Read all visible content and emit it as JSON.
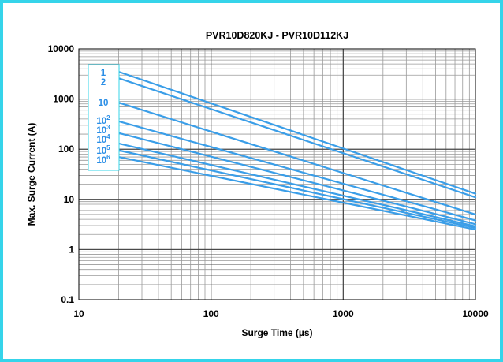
{
  "chart_data": {
    "type": "line",
    "title": "PVR10D820KJ - PVR10D112KJ",
    "xlabel": "Surge Time (µs)",
    "ylabel": "Max. Surge Current (A)",
    "x_scale": "log",
    "y_scale": "log",
    "xlim": [
      10,
      10000
    ],
    "ylim": [
      0.1,
      10000
    ],
    "x_ticks": [
      "10",
      "100",
      "1000",
      "10000"
    ],
    "y_ticks": [
      "0.1",
      "1",
      "10",
      "100",
      "1000",
      "10000"
    ],
    "grid": true,
    "legend_position": "top-left",
    "line_color": "#3a9ee8",
    "series": [
      {
        "name": "1",
        "label_base": "1",
        "label_exp": "",
        "x": [
          20,
          10000
        ],
        "y": [
          3500,
          13
        ]
      },
      {
        "name": "2",
        "label_base": "2",
        "label_exp": "",
        "x": [
          20,
          10000
        ],
        "y": [
          2600,
          11
        ]
      },
      {
        "name": "10",
        "label_base": "10",
        "label_exp": "",
        "x": [
          20,
          10000
        ],
        "y": [
          850,
          5
        ]
      },
      {
        "name": "10^2",
        "label_base": "10",
        "label_exp": "2",
        "x": [
          20,
          10000
        ],
        "y": [
          360,
          3.8
        ]
      },
      {
        "name": "10^3",
        "label_base": "10",
        "label_exp": "3",
        "x": [
          20,
          10000
        ],
        "y": [
          210,
          3.2
        ]
      },
      {
        "name": "10^4",
        "label_base": "10",
        "label_exp": "4",
        "x": [
          20,
          10000
        ],
        "y": [
          130,
          2.9
        ]
      },
      {
        "name": "10^5",
        "label_base": "10",
        "label_exp": "5",
        "x": [
          20,
          10000
        ],
        "y": [
          95,
          2.7
        ]
      },
      {
        "name": "10^6",
        "label_base": "10",
        "label_exp": "6",
        "x": [
          20,
          10000
        ],
        "y": [
          70,
          2.5
        ]
      }
    ]
  }
}
